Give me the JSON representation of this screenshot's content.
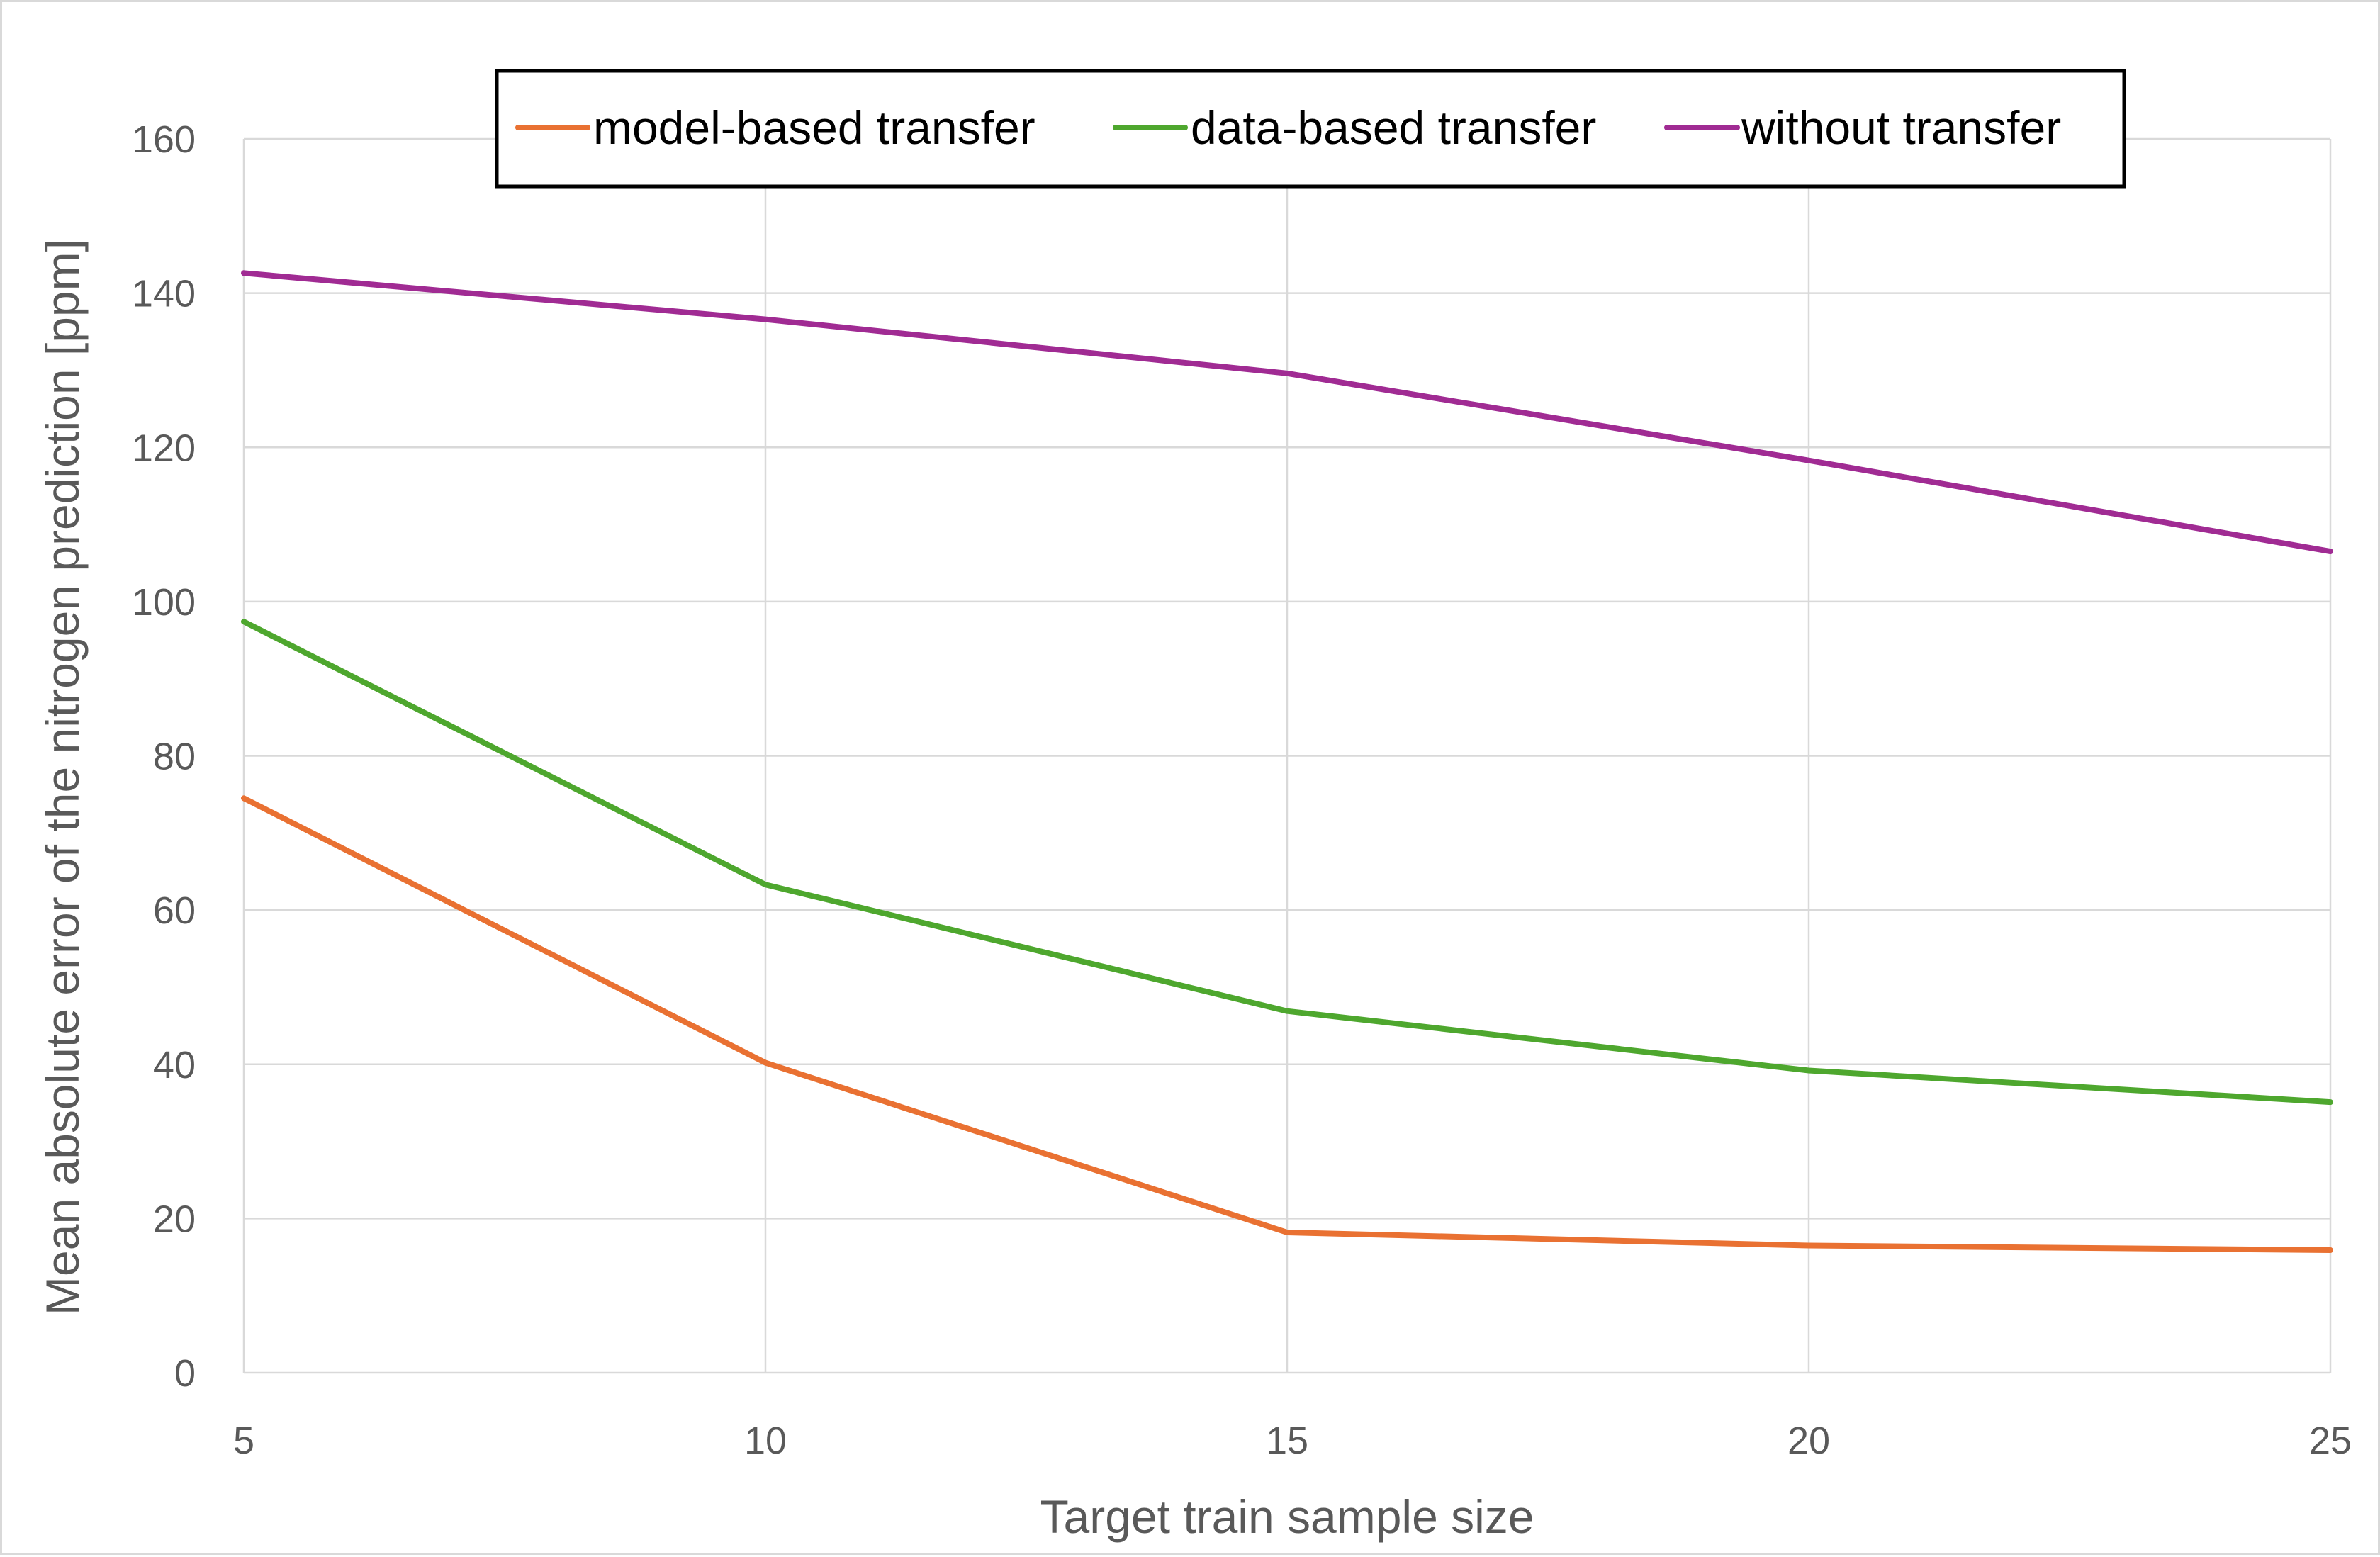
{
  "chart_data": {
    "type": "line",
    "title": "",
    "xlabel": "Target train sample size",
    "ylabel": "Mean absolute error  of the nitrogen prediction [ppm]",
    "x": [
      5,
      10,
      15,
      20,
      25
    ],
    "x_ticks": [
      "5",
      "10",
      "15",
      "20",
      "25"
    ],
    "xlim": [
      5,
      25
    ],
    "y_ticks": [
      "0",
      "20",
      "40",
      "60",
      "80",
      "100",
      "120",
      "140",
      "160"
    ],
    "ylim": [
      0,
      160
    ],
    "grid": true,
    "legend_position": "top",
    "series": [
      {
        "name": "model-based transfer",
        "color": "#E97132",
        "values": [
          74.5,
          40.2,
          18.2,
          16.5,
          15.9
        ]
      },
      {
        "name": "data-based transfer",
        "color": "#4EA72E",
        "values": [
          97.4,
          63.3,
          46.9,
          39.2,
          35.1
        ]
      },
      {
        "name": "without transfer",
        "color": "#A02B93",
        "values": [
          142.6,
          136.6,
          129.6,
          118.3,
          106.5
        ]
      }
    ]
  }
}
